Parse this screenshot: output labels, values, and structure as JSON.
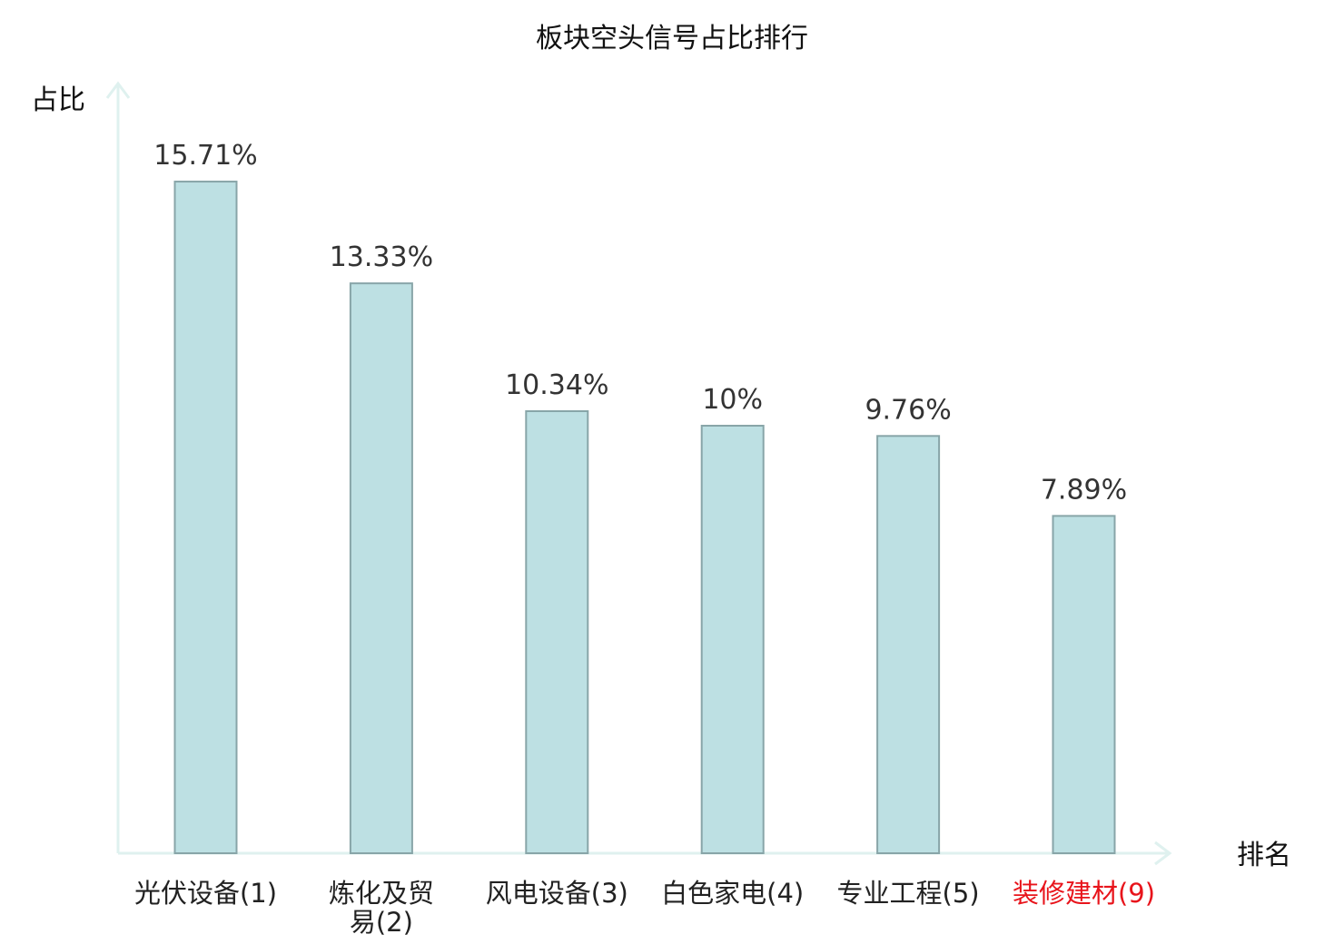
{
  "chart_data": {
    "type": "bar",
    "title": "板块空头信号占比排行",
    "ylabel": "占比",
    "xlabel": "排名",
    "ylim": [
      0,
      17.5
    ],
    "grid": false,
    "legend": "none",
    "categories": [
      {
        "name": "光伏设备",
        "rank": "(1)",
        "lines": [
          "光伏设备(1)"
        ],
        "highlight": false
      },
      {
        "name": "炼化及贸易",
        "rank": "(2)",
        "lines": [
          "炼化及贸",
          "易(2)"
        ],
        "highlight": false
      },
      {
        "name": "风电设备",
        "rank": "(3)",
        "lines": [
          "风电设备(3)"
        ],
        "highlight": false
      },
      {
        "name": "白色家电",
        "rank": "(4)",
        "lines": [
          "白色家电(4)"
        ],
        "highlight": false
      },
      {
        "name": "专业工程",
        "rank": "(5)",
        "lines": [
          "专业工程(5)"
        ],
        "highlight": false
      },
      {
        "name": "装修建材",
        "rank": "(9)",
        "lines": [
          "装修建材(9)"
        ],
        "highlight": true
      }
    ],
    "values": [
      15.71,
      13.33,
      10.34,
      10,
      9.76,
      7.89
    ],
    "value_labels": [
      "15.71%",
      "13.33%",
      "10.34%",
      "10%",
      "9.76%",
      "7.89%"
    ],
    "colors": {
      "bar_fill": "#bde0e3",
      "bar_stroke": "#88a5a8",
      "axis": "#dff1ef",
      "label": "#222222",
      "highlight": "#e8141b"
    }
  }
}
